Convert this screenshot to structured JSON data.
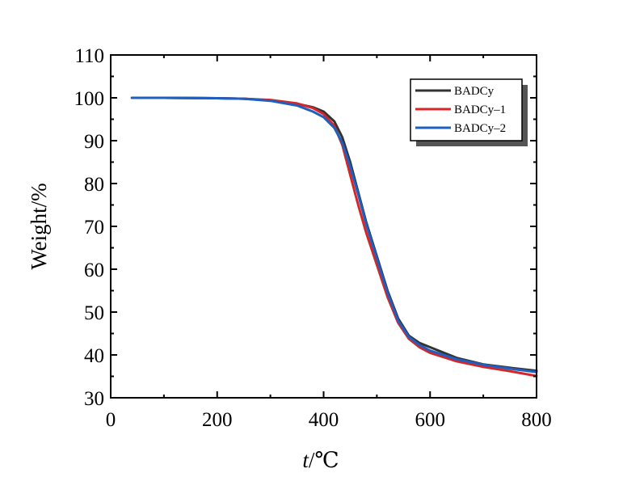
{
  "chart_data": {
    "type": "line",
    "title": "",
    "xlabel_italic": "t",
    "xlabel_rest": "/℃",
    "ylabel": "Weight/%",
    "xlim": [
      0,
      800
    ],
    "ylim": [
      30,
      110
    ],
    "x_ticks": [
      "0",
      "200",
      "400",
      "600",
      "800"
    ],
    "y_ticks": [
      "30",
      "40",
      "50",
      "60",
      "70",
      "80",
      "90",
      "100",
      "110"
    ],
    "grid": false,
    "legend_position": "top-right",
    "series": [
      {
        "name": "BADCy",
        "color": "#333333",
        "points": [
          [
            40,
            100
          ],
          [
            100,
            100
          ],
          [
            200,
            99.9
          ],
          [
            250,
            99.8
          ],
          [
            300,
            99.4
          ],
          [
            350,
            98.6
          ],
          [
            380,
            97.8
          ],
          [
            400,
            96.8
          ],
          [
            420,
            94.5
          ],
          [
            435,
            90.8
          ],
          [
            450,
            85
          ],
          [
            465,
            78
          ],
          [
            480,
            71
          ],
          [
            500,
            63
          ],
          [
            520,
            55
          ],
          [
            540,
            48.5
          ],
          [
            560,
            44.5
          ],
          [
            580,
            42.8
          ],
          [
            600,
            41.8
          ],
          [
            650,
            39.3
          ],
          [
            700,
            37.8
          ],
          [
            750,
            37
          ],
          [
            800,
            36.3
          ]
        ]
      },
      {
        "name": "BADCy–1",
        "color": "#d62728",
        "points": [
          [
            40,
            100
          ],
          [
            100,
            100
          ],
          [
            200,
            99.9
          ],
          [
            250,
            99.8
          ],
          [
            300,
            99.5
          ],
          [
            350,
            98.7
          ],
          [
            380,
            97.6
          ],
          [
            400,
            96.2
          ],
          [
            420,
            93.5
          ],
          [
            435,
            89
          ],
          [
            450,
            82
          ],
          [
            465,
            75
          ],
          [
            480,
            68.5
          ],
          [
            500,
            61
          ],
          [
            520,
            53.5
          ],
          [
            540,
            47.5
          ],
          [
            560,
            43.8
          ],
          [
            580,
            41.8
          ],
          [
            600,
            40.5
          ],
          [
            650,
            38.5
          ],
          [
            700,
            37.2
          ],
          [
            750,
            36.2
          ],
          [
            800,
            35.1
          ]
        ]
      },
      {
        "name": "BADCy–2",
        "color": "#1f5fbf",
        "points": [
          [
            40,
            100
          ],
          [
            100,
            100
          ],
          [
            200,
            99.9
          ],
          [
            250,
            99.8
          ],
          [
            300,
            99.3
          ],
          [
            350,
            98.2
          ],
          [
            380,
            96.8
          ],
          [
            400,
            95.5
          ],
          [
            420,
            93
          ],
          [
            435,
            89.5
          ],
          [
            450,
            84
          ],
          [
            465,
            77.5
          ],
          [
            480,
            70.5
          ],
          [
            500,
            62.5
          ],
          [
            520,
            54.5
          ],
          [
            540,
            48
          ],
          [
            560,
            44.2
          ],
          [
            580,
            42.3
          ],
          [
            600,
            41
          ],
          [
            650,
            39
          ],
          [
            700,
            37.7
          ],
          [
            750,
            36.8
          ],
          [
            800,
            36
          ]
        ]
      }
    ]
  }
}
